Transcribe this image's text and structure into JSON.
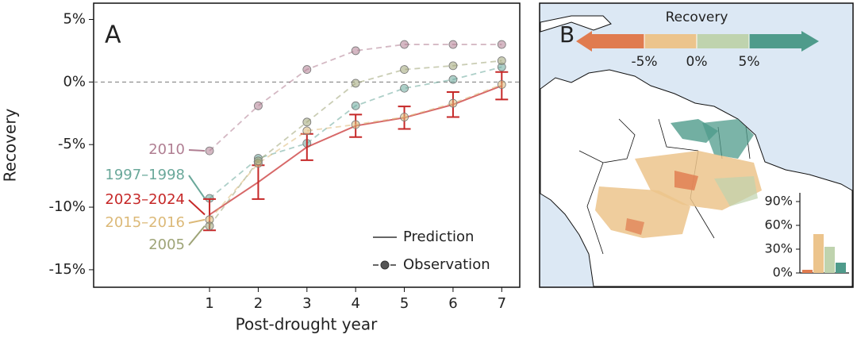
{
  "chart_data": [
    {
      "type": "line",
      "panel_label": "A",
      "ylabel": "Recovery",
      "xlabel": "Post-drought year",
      "x": [
        1,
        2,
        3,
        4,
        5,
        6,
        7
      ],
      "xlim": [
        -1.38,
        7.37
      ],
      "xticks": [
        1,
        2,
        3,
        4,
        5,
        6,
        7
      ],
      "ylim": [
        -16.4,
        6.3
      ],
      "yticks": [
        {
          "value": 5,
          "label": "5%"
        },
        {
          "value": 0,
          "label": "0%"
        },
        {
          "value": -5,
          "label": "-5%"
        },
        {
          "value": -10,
          "label": "-10%"
        },
        {
          "value": -15,
          "label": "-15%"
        }
      ],
      "reference_line": 0,
      "legend": [
        "Prediction",
        "Observation"
      ],
      "series": [
        {
          "name": "2010",
          "color": "#b07e92",
          "style": "observation",
          "values": [
            -5.5,
            -1.9,
            1.0,
            2.5,
            3.0,
            3.0,
            3.0
          ]
        },
        {
          "name": "1997–1998",
          "color": "#6aa89a",
          "style": "observation",
          "values": [
            -9.3,
            -6.1,
            -4.9,
            -1.9,
            -0.5,
            0.2,
            1.2
          ]
        },
        {
          "name": "2023–2024",
          "color": "#c62828",
          "style": "prediction",
          "values": [
            -10.6,
            -8.0,
            -5.2,
            -3.5,
            -2.85,
            -1.8,
            -0.3
          ],
          "errors": [
            1.25,
            1.35,
            1.05,
            0.9,
            0.9,
            1.0,
            1.1
          ]
        },
        {
          "name": "2015–2016",
          "color": "#dcb978",
          "style": "observation",
          "values": [
            -11.0,
            -6.5,
            -3.9,
            -3.4,
            -2.8,
            -1.7,
            -0.2
          ]
        },
        {
          "name": "2005",
          "color": "#9ea477",
          "style": "observation",
          "values": [
            -11.5,
            -6.3,
            -3.2,
            -0.1,
            1.0,
            1.3,
            1.7
          ]
        }
      ]
    },
    {
      "type": "bar",
      "panel_label": "B",
      "legend_title": "Recovery",
      "colorbar": {
        "lim": [
          -10,
          10
        ],
        "colors": [
          "#e07b4f",
          "#ecc48c",
          "#bfd3ae",
          "#4f9b8b"
        ],
        "ticks": [
          {
            "value": -5,
            "label": "-5%"
          },
          {
            "value": 0,
            "label": "0%"
          },
          {
            "value": 5,
            "label": "5%"
          }
        ]
      },
      "values": [
        4,
        49,
        33,
        13
      ],
      "colors": [
        "#e07b4f",
        "#ecc48c",
        "#bfd3ae",
        "#4f9b8b"
      ],
      "ylim": [
        0,
        100
      ],
      "yticks": [
        {
          "value": 0,
          "label": "0%"
        },
        {
          "value": 30,
          "label": "30%"
        },
        {
          "value": 60,
          "label": "60%"
        },
        {
          "value": 90,
          "label": "90%"
        }
      ]
    }
  ]
}
